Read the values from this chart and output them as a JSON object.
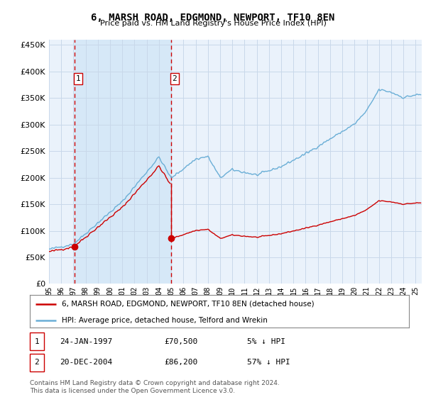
{
  "title": "6, MARSH ROAD, EDGMOND, NEWPORT, TF10 8EN",
  "subtitle": "Price paid vs. HM Land Registry's House Price Index (HPI)",
  "hpi_label": "HPI: Average price, detached house, Telford and Wrekin",
  "property_label": "6, MARSH ROAD, EDGMOND, NEWPORT, TF10 8EN (detached house)",
  "sale1_date": "24-JAN-1997",
  "sale1_price": 70500,
  "sale1_pct": "5% ↓ HPI",
  "sale2_date": "20-DEC-2004",
  "sale2_price": 86200,
  "sale2_pct": "57% ↓ HPI",
  "footer": "Contains HM Land Registry data © Crown copyright and database right 2024.\nThis data is licensed under the Open Government Licence v3.0.",
  "bg_color": "#ffffff",
  "plot_bg_color": "#eaf2fb",
  "grid_color": "#c8d8ea",
  "hpi_color": "#6aaed6",
  "property_color": "#cc0000",
  "dashed_line_color": "#cc0000",
  "shade_color": "#d6e8f7",
  "ylim": [
    0,
    460000
  ],
  "yticks": [
    0,
    50000,
    100000,
    150000,
    200000,
    250000,
    300000,
    350000,
    400000,
    450000
  ],
  "ytick_labels": [
    "£0",
    "£50K",
    "£100K",
    "£150K",
    "£200K",
    "£250K",
    "£300K",
    "£350K",
    "£400K",
    "£450K"
  ],
  "xlim_start": 1995.0,
  "xlim_end": 2025.5,
  "sale1_x": 1997.07,
  "sale2_x": 2004.97
}
